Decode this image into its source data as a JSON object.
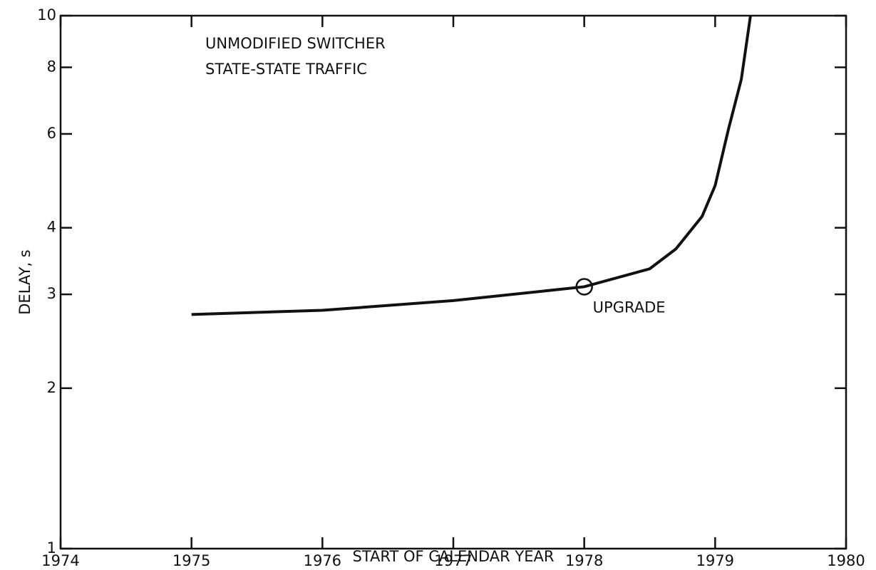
{
  "chart_data": {
    "type": "line",
    "x_label": "START OF CALENDAR YEAR",
    "y_label": "DELAY, s",
    "annotations": [
      "UNMODIFIED SWITCHER",
      "STATE-STATE TRAFFIC"
    ],
    "x": [
      1975,
      1976,
      1977,
      1978,
      1978.5,
      1978.7,
      1978.9,
      1979,
      1979.1,
      1979.2,
      1979.27
    ],
    "series": [
      {
        "color": "#111111",
        "values": [
          2.75,
          2.8,
          2.92,
          3.1,
          3.35,
          3.65,
          4.2,
          4.8,
          6.1,
          7.6,
          10
        ]
      }
    ],
    "marker": {
      "x": 1978,
      "y": 3.1,
      "label": "UPGRADE"
    },
    "xlim": [
      1974,
      1980
    ],
    "xticks": [
      1974,
      1975,
      1976,
      1977,
      1978,
      1979,
      1980
    ],
    "ylim": [
      1,
      10
    ],
    "yticks": [
      1,
      2,
      3,
      4,
      6,
      8,
      10
    ],
    "log_y": true,
    "grid": false
  }
}
